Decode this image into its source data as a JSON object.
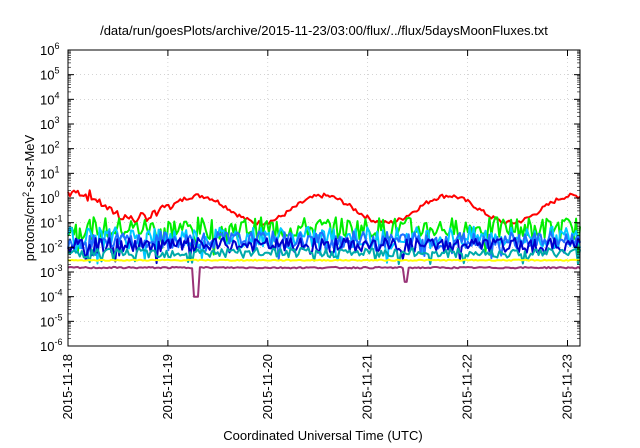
{
  "chart_data": {
    "type": "line",
    "title": "/data/run/goesPlots/archive/2015-11-23/03:00/flux/../flux/5daysMoonFluxes.txt",
    "xlabel": "Coordinated Universal Time (UTC)",
    "ylabel": "protons/cm²-s-sr-MeV",
    "x_ticks": [
      "2015-11-18",
      "2015-11-19",
      "2015-11-20",
      "2015-11-21",
      "2015-11-22",
      "2015-11-23"
    ],
    "xlim": [
      "2015-11-18T00:00",
      "2015-11-23T03:00"
    ],
    "y_scale": "log",
    "ylim": [
      1e-06,
      1000000.0
    ],
    "y_ticks": [
      "10-6",
      "10-5",
      "10-4",
      "10-3",
      "10-2",
      "10-1",
      "100",
      "101",
      "102",
      "103",
      "104",
      "105",
      "106"
    ],
    "grid": true,
    "series_style": [
      {
        "color": "#ff0000",
        "level": 0.35,
        "amp": 1.2,
        "shape": "bumps"
      },
      {
        "color": "#00ee00",
        "level": 0.06,
        "amp": 0.45,
        "shape": "noisy"
      },
      {
        "color": "#00c8ff",
        "level": 0.025,
        "amp": 0.45,
        "shape": "noisy"
      },
      {
        "color": "#2070ff",
        "level": 0.02,
        "amp": 0.35,
        "shape": "noisy"
      },
      {
        "color": "#0000cc",
        "level": 0.012,
        "amp": 0.3,
        "shape": "noisy"
      },
      {
        "color": "#00aaaa",
        "level": 0.006,
        "amp": 0.2,
        "shape": "noisy"
      },
      {
        "color": "#ffff00",
        "level": 0.003,
        "amp": 0.05,
        "shape": "flat"
      },
      {
        "color": "#993377",
        "level": 0.0015,
        "amp": 0.06,
        "shape": "flat"
      }
    ]
  }
}
